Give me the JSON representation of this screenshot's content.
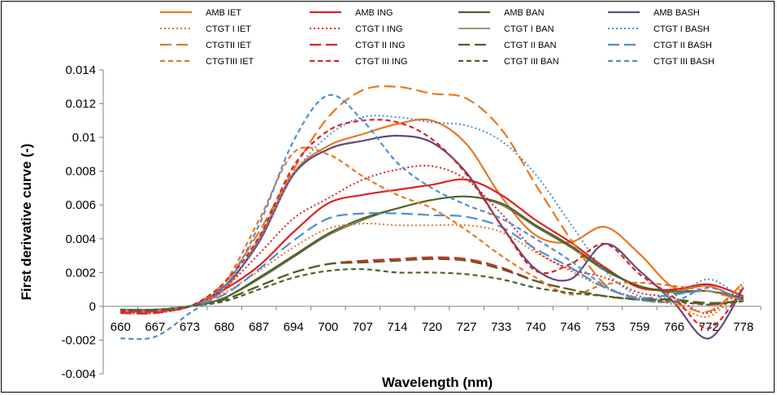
{
  "chart_data": {
    "type": "line",
    "title": "",
    "xlabel": "Wavelength (nm)",
    "ylabel": "First derivative curve (-)",
    "x": [
      660,
      667,
      673,
      680,
      687,
      694,
      700,
      707,
      714,
      720,
      727,
      733,
      740,
      746,
      753,
      759,
      766,
      772,
      778
    ],
    "x_tick_labels": [
      "660",
      "667",
      "673",
      "680",
      "687",
      "694",
      "700",
      "707",
      "714",
      "720",
      "727",
      "733",
      "740",
      "746",
      "753",
      "759",
      "766",
      "772",
      "778"
    ],
    "ylim": [
      -0.004,
      0.014
    ],
    "y_ticks": [
      -0.004,
      -0.002,
      0,
      0.002,
      0.004,
      0.006,
      0.008,
      0.01,
      0.012,
      0.014
    ],
    "y_tick_labels": [
      "-0.004",
      "-0.002",
      "0",
      "0.002",
      "0.004",
      "0.006",
      "0.008",
      "0.01",
      "0.012",
      "0.014"
    ],
    "grid": false,
    "legend_position": "top",
    "series": [
      {
        "name": "AMB IET",
        "color": "#E87722",
        "dash": "solid",
        "values": [
          -0.0003,
          -0.0003,
          0.0,
          0.001,
          0.004,
          0.0079,
          0.0095,
          0.0102,
          0.0108,
          0.011,
          0.0096,
          0.0065,
          0.0042,
          0.0038,
          0.0047,
          0.0031,
          0.0011,
          0.0012,
          0.0003
        ]
      },
      {
        "name": "AMB ING",
        "color": "#E02020",
        "dash": "solid",
        "values": [
          -0.0003,
          -0.0003,
          0.0,
          0.001,
          0.0024,
          0.0044,
          0.0061,
          0.0066,
          0.0069,
          0.0072,
          0.0075,
          0.0066,
          0.0051,
          0.0038,
          0.0023,
          0.0011,
          0.001,
          0.0013,
          0.0006
        ]
      },
      {
        "name": "AMB BAN",
        "color": "#4F6228",
        "dash": "solid",
        "values": [
          -0.0002,
          -0.0002,
          0.0,
          0.0005,
          0.0017,
          0.003,
          0.0043,
          0.0052,
          0.0058,
          0.0063,
          0.0065,
          0.0061,
          0.0048,
          0.0036,
          0.0022,
          0.0012,
          0.0009,
          0.0009,
          0.0005
        ]
      },
      {
        "name": "AMB BASH",
        "color": "#604A7B",
        "dash": "solid",
        "values": [
          -0.0003,
          -0.0003,
          0.0,
          0.0012,
          0.0038,
          0.0078,
          0.0093,
          0.0098,
          0.0101,
          0.0097,
          0.0079,
          0.0048,
          0.0022,
          0.0016,
          0.0037,
          0.0021,
          0.0002,
          -0.0019,
          0.0011
        ]
      },
      {
        "name": "CTGT I IET",
        "color": "#E87722",
        "dash": "dot",
        "values": [
          -0.0004,
          -0.0004,
          0.0,
          0.0008,
          0.0021,
          0.0035,
          0.0046,
          0.0049,
          0.0048,
          0.0048,
          0.0048,
          0.0044,
          0.0032,
          0.0021,
          0.0011,
          0.0005,
          0.0001,
          -0.0006,
          0.0012
        ]
      },
      {
        "name": "CTGT I ING",
        "color": "#E02020",
        "dash": "dot",
        "values": [
          -0.0004,
          -0.0004,
          0.0,
          0.0011,
          0.0031,
          0.0052,
          0.0064,
          0.0075,
          0.0081,
          0.0083,
          0.0075,
          0.0055,
          0.0033,
          0.0022,
          0.0017,
          0.0008,
          0.0005,
          -0.0004,
          0.0014
        ]
      },
      {
        "name": "CTGT I BAN",
        "color": "#4F6228",
        "dash": "thin",
        "values": [
          -0.0002,
          -0.0002,
          0.0,
          0.0005,
          0.0016,
          0.0029,
          0.0042,
          0.0051,
          0.0058,
          0.0063,
          0.0065,
          0.006,
          0.0047,
          0.0035,
          0.0021,
          0.0012,
          0.0008,
          0.0009,
          0.0004
        ]
      },
      {
        "name": "CTGT I BASH",
        "color": "#4F8FD0",
        "dash": "dot",
        "values": [
          -0.0003,
          -0.0003,
          0.0,
          0.0012,
          0.0039,
          0.0078,
          0.0101,
          0.0112,
          0.0112,
          0.0109,
          0.0107,
          0.0098,
          0.0078,
          0.0049,
          0.0021,
          0.0006,
          0.0006,
          0.0016,
          0.0004
        ]
      },
      {
        "name": "CTGTII IET",
        "color": "#E87722",
        "dash": "long",
        "values": [
          -0.0003,
          -0.0003,
          0.0,
          0.0014,
          0.0044,
          0.0081,
          0.0112,
          0.0128,
          0.013,
          0.0126,
          0.0123,
          0.0105,
          0.0072,
          0.004,
          0.0013,
          0.0004,
          0.0002,
          -0.0003,
          0.0014
        ]
      },
      {
        "name": "CTGT II ING",
        "color": "#E02020",
        "dash": "long",
        "values": [
          -0.0004,
          -0.0004,
          0.0,
          0.0004,
          0.0012,
          0.002,
          0.0025,
          0.0027,
          0.0028,
          0.0029,
          0.0028,
          0.0023,
          0.0015,
          0.001,
          0.0006,
          0.0004,
          0.0004,
          0.0001,
          0.0004
        ]
      },
      {
        "name": "CTGT II BAN",
        "color": "#4F6228",
        "dash": "long",
        "values": [
          -0.0002,
          -0.0002,
          0.0,
          0.0004,
          0.0012,
          0.002,
          0.0025,
          0.0026,
          0.0027,
          0.0028,
          0.0027,
          0.0022,
          0.0015,
          0.001,
          0.0006,
          0.0004,
          0.0004,
          0.0002,
          0.0003
        ]
      },
      {
        "name": "CTGT II BASH",
        "color": "#4F8FD0",
        "dash": "long",
        "values": [
          -0.0002,
          -0.0002,
          0.0,
          0.0007,
          0.0022,
          0.0039,
          0.0052,
          0.0055,
          0.0055,
          0.0054,
          0.0053,
          0.0047,
          0.0034,
          0.0023,
          0.0011,
          0.0005,
          0.0007,
          0.0009,
          0.0003
        ]
      },
      {
        "name": "CTGTIII IET",
        "color": "#E87722",
        "dash": "short",
        "values": [
          -0.0003,
          -0.0003,
          0.0,
          0.0014,
          0.0051,
          0.0091,
          0.009,
          0.0077,
          0.0066,
          0.0058,
          0.0045,
          0.003,
          0.0017,
          0.0007,
          0.0013,
          0.0014,
          0.0012,
          0.0009,
          0.0003
        ]
      },
      {
        "name": "CTGT III ING",
        "color": "#E02020",
        "dash": "short",
        "values": [
          -0.0003,
          -0.0003,
          0.0,
          0.0014,
          0.0041,
          0.0083,
          0.0104,
          0.011,
          0.0109,
          0.0099,
          0.0078,
          0.0048,
          0.0021,
          0.0025,
          0.0037,
          0.0019,
          0.0005,
          -0.0013,
          0.0011
        ]
      },
      {
        "name": "CTGT III BAN",
        "color": "#4F6228",
        "dash": "short",
        "values": [
          -0.0002,
          -0.0002,
          0.0,
          0.0003,
          0.001,
          0.0017,
          0.0021,
          0.0022,
          0.002,
          0.002,
          0.0019,
          0.0016,
          0.0011,
          0.0008,
          0.0006,
          0.0004,
          0.0003,
          0.0001,
          0.0003
        ]
      },
      {
        "name": "CTGT III BASH",
        "color": "#4F8FD0",
        "dash": "short",
        "values": [
          -0.0019,
          -0.0018,
          -0.0004,
          0.0011,
          0.0048,
          0.0098,
          0.0125,
          0.011,
          0.0085,
          0.007,
          0.006,
          0.0052,
          0.004,
          0.0027,
          0.0012,
          0.0004,
          0.0003,
          0.0011,
          0.0003
        ]
      }
    ]
  }
}
